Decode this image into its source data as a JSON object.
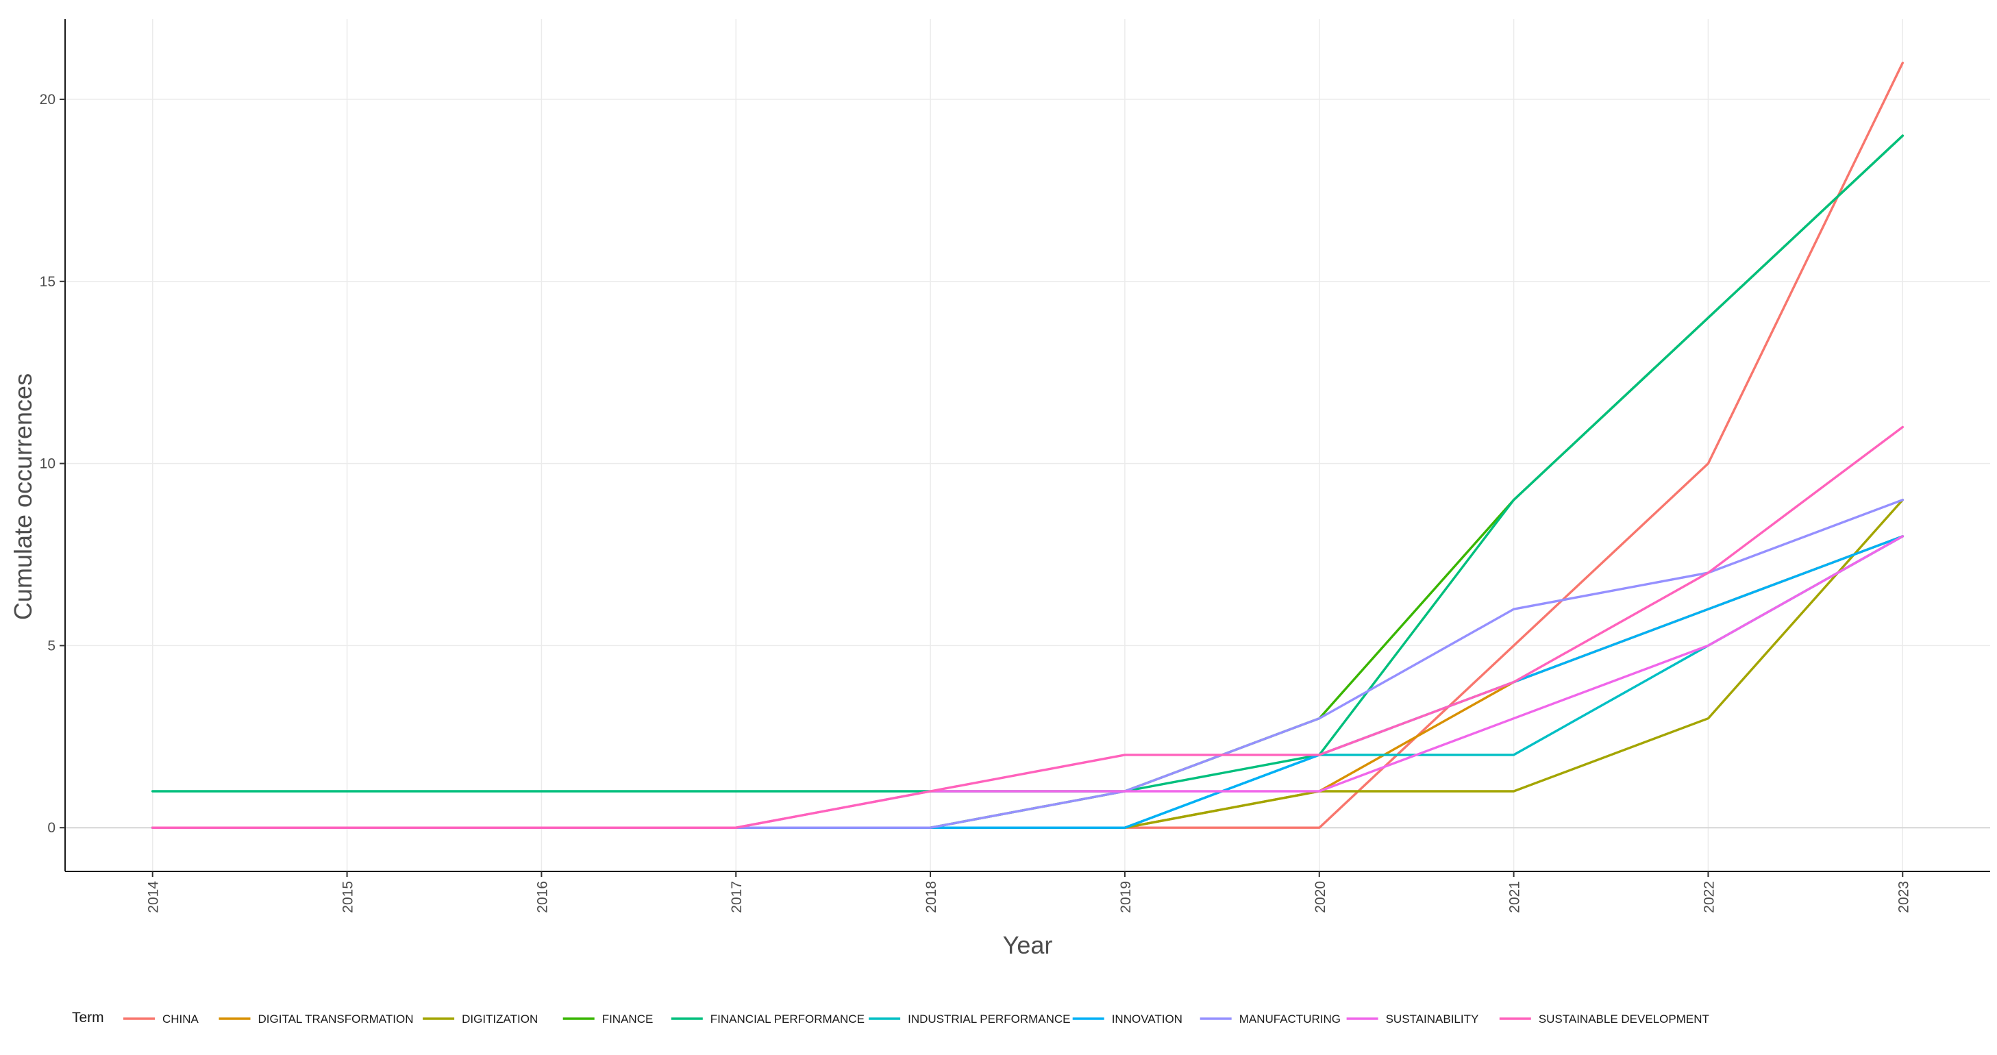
{
  "chart_data": {
    "type": "line",
    "xlabel": "Year",
    "ylabel": "Cumulate occurrences",
    "x": [
      2014,
      2015,
      2016,
      2017,
      2018,
      2019,
      2020,
      2021,
      2022,
      2023
    ],
    "x_tick_labels": [
      "2014",
      "2015",
      "2016",
      "2017",
      "2018",
      "2019",
      "2020",
      "2021",
      "2022",
      "2023"
    ],
    "y_ticks": [
      0,
      5,
      10,
      15,
      20
    ],
    "y_tick_labels": [
      "0",
      "5",
      "10",
      "15",
      "20"
    ],
    "xlim": [
      2013.55,
      2023.45
    ],
    "ylim": [
      -1.2,
      22.2
    ],
    "grid": true,
    "legend_title": "Term",
    "legend_position": "bottom",
    "series": [
      {
        "name": "CHINA",
        "color": "#F8766D",
        "values": [
          0,
          0,
          0,
          0,
          0,
          0,
          0,
          5,
          10,
          21
        ]
      },
      {
        "name": "DIGITAL TRANSFORMATION",
        "color": "#D89000",
        "values": [
          0,
          0,
          0,
          0,
          0,
          0,
          1,
          4,
          6,
          8
        ]
      },
      {
        "name": "DIGITIZATION",
        "color": "#A3A500",
        "values": [
          0,
          0,
          0,
          0,
          0,
          0,
          1,
          1,
          3,
          9
        ]
      },
      {
        "name": "FINANCE",
        "color": "#39B600",
        "values": [
          0,
          0,
          0,
          0,
          0,
          1,
          3,
          9,
          14,
          19
        ]
      },
      {
        "name": "FINANCIAL PERFORMANCE",
        "color": "#00BF7D",
        "values": [
          1,
          1,
          1,
          1,
          1,
          1,
          2,
          9,
          14,
          19
        ]
      },
      {
        "name": "INDUSTRIAL PERFORMANCE",
        "color": "#00BFC4",
        "values": [
          0,
          0,
          0,
          0,
          0,
          0,
          2,
          2,
          5,
          8
        ]
      },
      {
        "name": "INNOVATION",
        "color": "#00B0F6",
        "values": [
          0,
          0,
          0,
          0,
          0,
          0,
          2,
          4,
          6,
          8
        ]
      },
      {
        "name": "MANUFACTURING",
        "color": "#9590FF",
        "values": [
          0,
          0,
          0,
          0,
          0,
          1,
          3,
          6,
          7,
          9
        ]
      },
      {
        "name": "SUSTAINABILITY",
        "color": "#F066EA",
        "values": [
          0,
          0,
          0,
          0,
          1,
          1,
          1,
          3,
          5,
          8
        ]
      },
      {
        "name": "SUSTAINABLE DEVELOPMENT",
        "color": "#FF62BC",
        "values": [
          0,
          0,
          0,
          0,
          1,
          2,
          2,
          4,
          7,
          11
        ]
      }
    ]
  }
}
